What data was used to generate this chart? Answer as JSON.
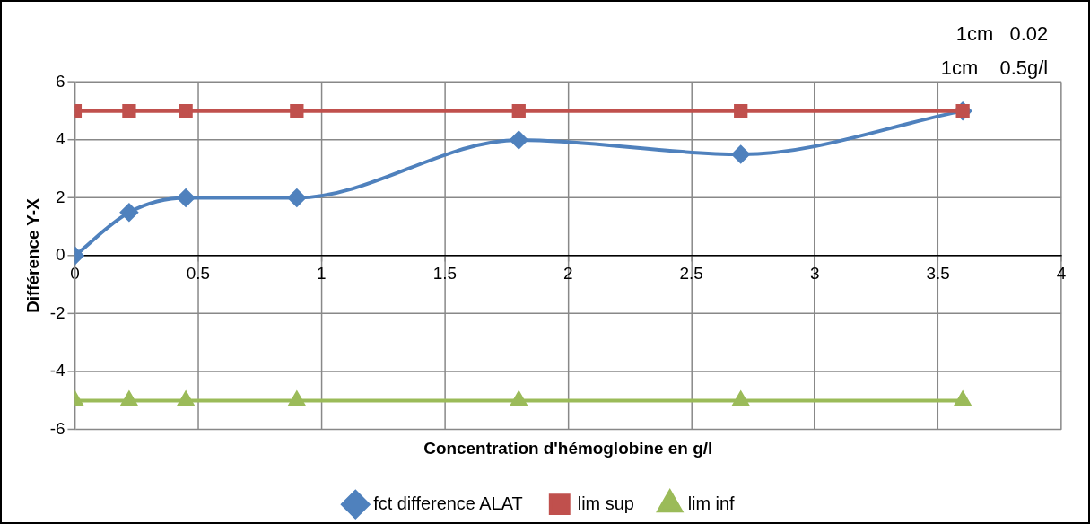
{
  "chart_data": {
    "type": "line",
    "xlabel": "Concentration d'hémoglobine en g/l",
    "ylabel": "Différence Y-X",
    "x": [
      0,
      0.22,
      0.45,
      0.9,
      1.8,
      2.7,
      3.6
    ],
    "series": [
      {
        "name": "fct difference ALAT",
        "color": "#4f81bd",
        "marker": "diamond",
        "values": [
          0,
          1.5,
          2,
          2,
          4,
          3.5,
          5
        ]
      },
      {
        "name": "lim sup",
        "color": "#c0504d",
        "marker": "square",
        "values": [
          5,
          5,
          5,
          5,
          5,
          5,
          5
        ]
      },
      {
        "name": "lim inf",
        "color": "#9bbb59",
        "marker": "triangle",
        "values": [
          -5,
          -5,
          -5,
          -5,
          -5,
          -5,
          -5
        ]
      }
    ],
    "xlim": [
      0,
      4
    ],
    "xticks": [
      0,
      0.5,
      1,
      1.5,
      2,
      2.5,
      3,
      3.5,
      4
    ],
    "ylim": [
      -6,
      6
    ],
    "yticks": [
      -6,
      -4,
      -2,
      0,
      2,
      4,
      6
    ],
    "grid": true,
    "legend": "bottom",
    "line_style": "solid",
    "annotations": [
      "1cm   0.02",
      "1cm    0.5g/l"
    ]
  }
}
